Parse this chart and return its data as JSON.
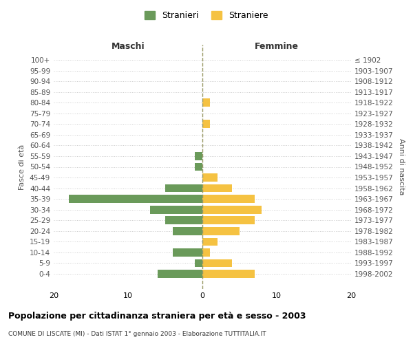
{
  "age_groups": [
    "100+",
    "95-99",
    "90-94",
    "85-89",
    "80-84",
    "75-79",
    "70-74",
    "65-69",
    "60-64",
    "55-59",
    "50-54",
    "45-49",
    "40-44",
    "35-39",
    "30-34",
    "25-29",
    "20-24",
    "15-19",
    "10-14",
    "5-9",
    "0-4"
  ],
  "birth_years": [
    "≤ 1902",
    "1903-1907",
    "1908-1912",
    "1913-1917",
    "1918-1922",
    "1923-1927",
    "1928-1932",
    "1933-1937",
    "1938-1942",
    "1943-1947",
    "1948-1952",
    "1953-1957",
    "1958-1962",
    "1963-1967",
    "1968-1972",
    "1973-1977",
    "1978-1982",
    "1983-1987",
    "1988-1992",
    "1993-1997",
    "1998-2002"
  ],
  "maschi": [
    0,
    0,
    0,
    0,
    0,
    0,
    0,
    0,
    0,
    1,
    1,
    0,
    5,
    18,
    7,
    5,
    4,
    0,
    4,
    1,
    6
  ],
  "femmine": [
    0,
    0,
    0,
    0,
    1,
    0,
    1,
    0,
    0,
    0,
    0,
    2,
    4,
    7,
    8,
    7,
    5,
    2,
    1,
    4,
    7
  ],
  "color_maschi": "#6a9a5a",
  "color_femmine": "#f5c242",
  "title": "Popolazione per cittadinanza straniera per età e sesso - 2003",
  "subtitle": "COMUNE DI LISCATE (MI) - Dati ISTAT 1° gennaio 2003 - Elaborazione TUTTITALIA.IT",
  "legend_maschi": "Stranieri",
  "legend_femmine": "Straniere",
  "xlabel_left": "Maschi",
  "xlabel_right": "Femmine",
  "ylabel_left": "Fasce di età",
  "ylabel_right": "Anni di nascita",
  "xlim": 20,
  "background_color": "#ffffff",
  "grid_color": "#cccccc"
}
